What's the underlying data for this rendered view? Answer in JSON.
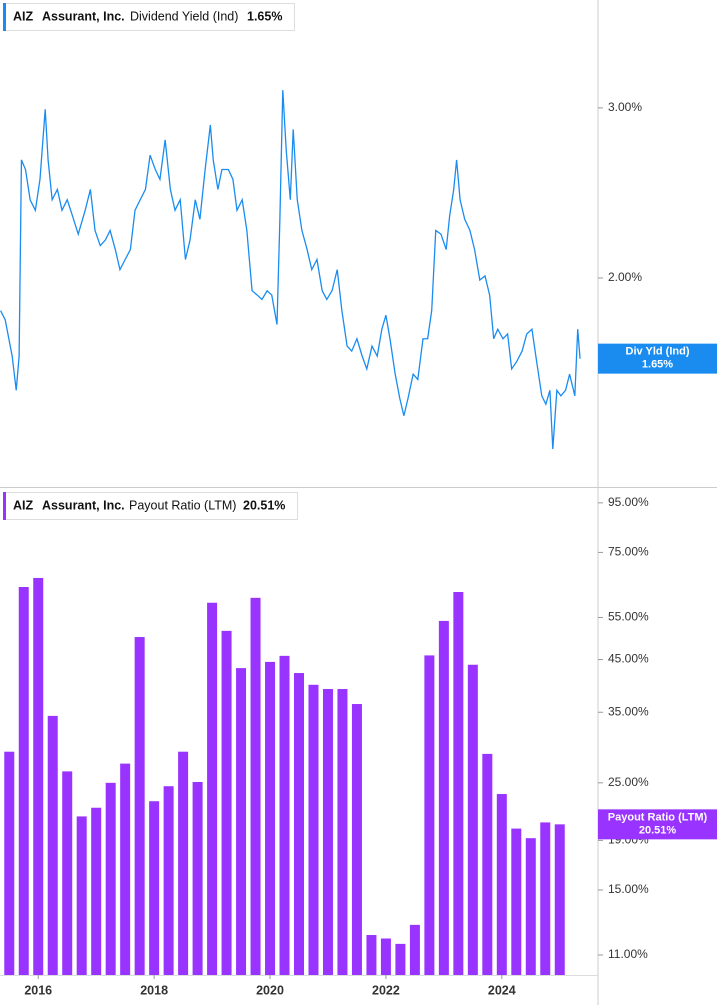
{
  "chart_data": [
    {
      "type": "line",
      "ticker": "AIZ",
      "company": "Assurant, Inc.",
      "title": "Dividend Yield (Ind)",
      "current": {
        "value": 1.65,
        "label": "1.65%"
      },
      "log": true,
      "grid": false,
      "xlim": [
        2015.34,
        2025.66
      ],
      "ylim": [
        1.215,
        3.88
      ],
      "yticks": [
        {
          "value": 3,
          "label": "3.00%"
        },
        {
          "value": 2,
          "label": "2.00%"
        }
      ],
      "x": [
        2015.35,
        2015.43,
        2015.55,
        2015.62,
        2015.67,
        2015.71,
        2015.78,
        2015.86,
        2015.95,
        2016.03,
        2016.12,
        2016.17,
        2016.24,
        2016.33,
        2016.41,
        2016.5,
        2016.59,
        2016.69,
        2016.81,
        2016.9,
        2016.98,
        2017.07,
        2017.16,
        2017.24,
        2017.33,
        2017.41,
        2017.5,
        2017.59,
        2017.67,
        2017.76,
        2017.85,
        2017.93,
        2018.02,
        2018.1,
        2018.19,
        2018.28,
        2018.36,
        2018.45,
        2018.54,
        2018.62,
        2018.71,
        2018.79,
        2018.88,
        2018.97,
        2019.02,
        2019.1,
        2019.17,
        2019.28,
        2019.36,
        2019.43,
        2019.52,
        2019.6,
        2019.69,
        2019.78,
        2019.86,
        2019.95,
        2020.03,
        2020.12,
        2020.17,
        2020.22,
        2020.28,
        2020.35,
        2020.4,
        2020.47,
        2020.55,
        2020.64,
        2020.72,
        2020.81,
        2020.9,
        2020.98,
        2021.07,
        2021.16,
        2021.24,
        2021.33,
        2021.41,
        2021.5,
        2021.59,
        2021.67,
        2021.76,
        2021.85,
        2021.93,
        2022.0,
        2022.07,
        2022.16,
        2022.24,
        2022.31,
        2022.38,
        2022.47,
        2022.55,
        2022.64,
        2022.72,
        2022.79,
        2022.86,
        2022.95,
        2023.04,
        2023.1,
        2023.17,
        2023.22,
        2023.28,
        2023.36,
        2023.45,
        2023.53,
        2023.62,
        2023.71,
        2023.79,
        2023.86,
        2023.93,
        2024.02,
        2024.1,
        2024.17,
        2024.26,
        2024.35,
        2024.43,
        2024.52,
        2024.6,
        2024.69,
        2024.76,
        2024.83,
        2024.88,
        2024.95,
        2025.02,
        2025.1,
        2025.17,
        2025.26,
        2025.31,
        2025.35
      ],
      "series": [
        {
          "name": "Div Yld (Ind)",
          "color": "#1a8cf0",
          "values": [
            1.85,
            1.81,
            1.66,
            1.53,
            1.66,
            2.65,
            2.59,
            2.41,
            2.35,
            2.53,
            2.99,
            2.65,
            2.41,
            2.47,
            2.35,
            2.41,
            2.32,
            2.22,
            2.35,
            2.47,
            2.24,
            2.16,
            2.19,
            2.24,
            2.14,
            2.04,
            2.09,
            2.14,
            2.35,
            2.41,
            2.47,
            2.68,
            2.59,
            2.53,
            2.78,
            2.47,
            2.35,
            2.41,
            2.09,
            2.19,
            2.41,
            2.3,
            2.59,
            2.88,
            2.65,
            2.47,
            2.59,
            2.59,
            2.53,
            2.35,
            2.41,
            2.24,
            1.94,
            1.92,
            1.9,
            1.94,
            1.92,
            1.79,
            2.3,
            3.13,
            2.71,
            2.41,
            2.85,
            2.41,
            2.24,
            2.14,
            2.04,
            2.09,
            1.94,
            1.9,
            1.94,
            2.04,
            1.85,
            1.7,
            1.68,
            1.73,
            1.66,
            1.61,
            1.7,
            1.66,
            1.77,
            1.83,
            1.73,
            1.59,
            1.5,
            1.44,
            1.5,
            1.59,
            1.57,
            1.73,
            1.73,
            1.85,
            2.24,
            2.22,
            2.14,
            2.32,
            2.47,
            2.65,
            2.41,
            2.3,
            2.24,
            2.14,
            1.99,
            2.01,
            1.92,
            1.73,
            1.77,
            1.73,
            1.75,
            1.61,
            1.64,
            1.68,
            1.75,
            1.77,
            1.64,
            1.51,
            1.48,
            1.53,
            1.33,
            1.53,
            1.51,
            1.53,
            1.59,
            1.51,
            1.77,
            1.65
          ]
        }
      ]
    },
    {
      "type": "bar",
      "ticker": "AIZ",
      "company": "Assurant, Inc.",
      "title": "Payout Ratio (LTM)",
      "current": {
        "value": 20.51,
        "label": "20.51%"
      },
      "log": true,
      "grid": false,
      "xlim": [
        2015.34,
        2025.66
      ],
      "xticks": [
        2016,
        2018,
        2020,
        2022,
        2024
      ],
      "ylim": [
        10,
        101
      ],
      "yticks": [
        {
          "value": 95,
          "label": "95.00%"
        },
        {
          "value": 75,
          "label": "75.00%"
        },
        {
          "value": 55,
          "label": "55.00%"
        },
        {
          "value": 45,
          "label": "45.00%"
        },
        {
          "value": 35,
          "label": "35.00%"
        },
        {
          "value": 25,
          "label": "25.00%"
        },
        {
          "value": 19,
          "label": "19.00%"
        },
        {
          "value": 15,
          "label": "15.00%"
        },
        {
          "value": 11,
          "label": "11.00%"
        }
      ],
      "x": [
        2015.5,
        2015.75,
        2016.0,
        2016.25,
        2016.5,
        2016.75,
        2017.0,
        2017.25,
        2017.5,
        2017.75,
        2018.0,
        2018.25,
        2018.5,
        2018.75,
        2019.0,
        2019.25,
        2019.5,
        2019.75,
        2020.0,
        2020.25,
        2020.5,
        2020.75,
        2021.0,
        2021.25,
        2021.5,
        2021.75,
        2022.0,
        2022.25,
        2022.5,
        2022.75,
        2023.0,
        2023.25,
        2023.5,
        2023.75,
        2024.0,
        2024.25,
        2024.5,
        2024.75,
        2025.0
      ],
      "series": [
        {
          "name": "Payout Ratio (LTM)",
          "color": "#9933ff",
          "values": [
            29.0,
            63.6,
            66.4,
            34.4,
            26.4,
            21.3,
            22.2,
            25.0,
            27.4,
            50.1,
            22.9,
            24.6,
            29.0,
            25.1,
            59.0,
            51.6,
            43.2,
            60.4,
            44.5,
            45.8,
            42.2,
            39.9,
            39.1,
            39.1,
            36.4,
            12.1,
            11.9,
            11.6,
            12.7,
            45.9,
            54.1,
            62.1,
            43.9,
            28.7,
            23.7,
            20.1,
            19.2,
            20.7,
            20.51
          ]
        }
      ]
    }
  ]
}
